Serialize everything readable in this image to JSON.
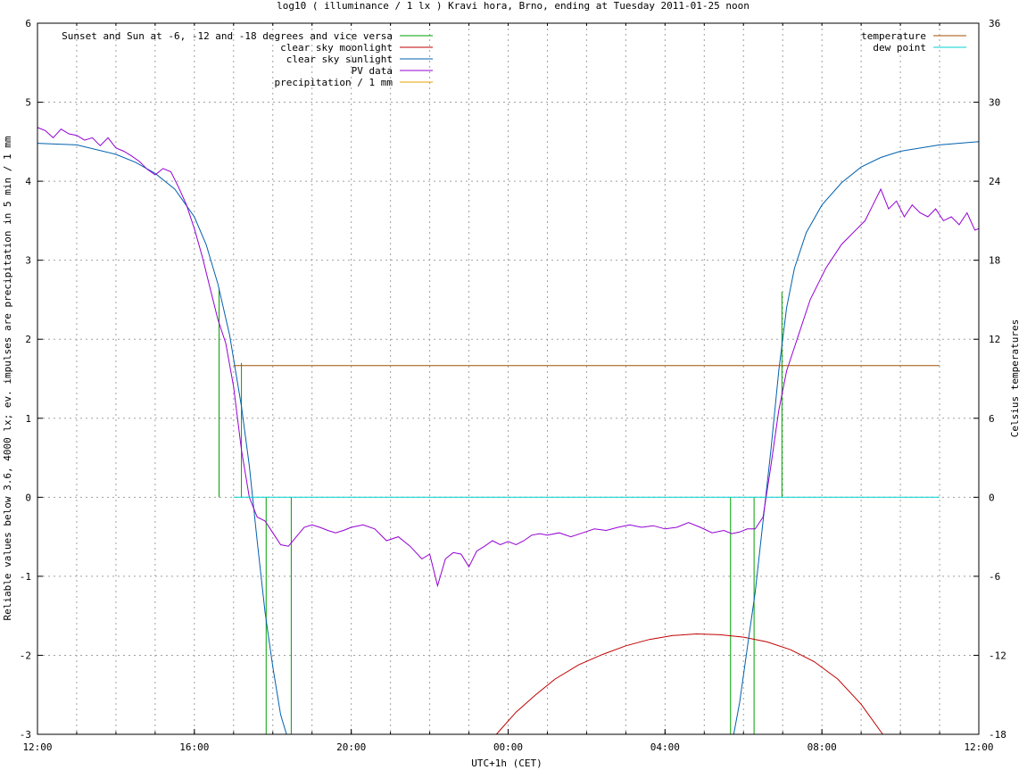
{
  "chart_data": {
    "type": "line",
    "title": "log10 ( illuminance / 1 lx ) Kravi hora, Brno, ending at Tuesday 2011-01-25 noon",
    "xlabel": "UTC+1h (CET)",
    "ylabel": "Reliable values below 3.6, 4000 lx; ev. impulses are precipitation in 5 min / 1 mm",
    "y2label": "Celsius temperatures",
    "xlim": [
      0,
      24
    ],
    "ylim": [
      -3,
      6
    ],
    "y2lim": [
      -18,
      36
    ],
    "x_tick_labels": [
      "12:00",
      "16:00",
      "20:00",
      "00:00",
      "04:00",
      "08:00",
      "12:00"
    ],
    "x_tick_values": [
      0,
      4,
      8,
      12,
      16,
      20,
      24
    ],
    "y_ticks": [
      -3,
      -2,
      -1,
      0,
      1,
      2,
      3,
      4,
      5,
      6
    ],
    "y2_ticks": [
      -18,
      -12,
      -6,
      0,
      6,
      12,
      18,
      24,
      30,
      36
    ],
    "grid": true,
    "legend_left_placement": "top-left",
    "legend_right_placement": "top-right",
    "series": [
      {
        "name": "Sunset and Sun at -6, -12 and -18 degrees and vice versa",
        "color": "#00a000",
        "style": "impulse",
        "x": [
          4.63,
          5.2,
          5.83,
          6.47,
          17.67,
          18.27,
          18.98
        ],
        "from": 0,
        "to": [
          2.65,
          1.7,
          -3,
          -3,
          -3,
          -3,
          2.6
        ]
      },
      {
        "name": "clear sky moonlight",
        "color": "#c00000",
        "x": [
          11.7,
          12.2,
          12.7,
          13.2,
          13.8,
          14.4,
          15.0,
          15.6,
          16.2,
          16.8,
          17.4,
          18.0,
          18.6,
          19.2,
          19.8,
          20.4,
          21.0,
          21.55
        ],
        "y": [
          -3.0,
          -2.72,
          -2.5,
          -2.3,
          -2.12,
          -1.99,
          -1.88,
          -1.8,
          -1.75,
          -1.73,
          -1.74,
          -1.77,
          -1.83,
          -1.93,
          -2.08,
          -2.3,
          -2.62,
          -3.0
        ]
      },
      {
        "name": "clear sky sunlight",
        "color": "#0060ad",
        "x": [
          0,
          1,
          2,
          2.5,
          3,
          3.5,
          4.0,
          4.3,
          4.6,
          4.9,
          5.2,
          5.4,
          5.6,
          5.8,
          6.0,
          6.2,
          6.35,
          17.75,
          17.9,
          18.1,
          18.3,
          18.5,
          18.7,
          18.9,
          19.1,
          19.3,
          19.6,
          20.0,
          20.5,
          21.0,
          21.5,
          22.0,
          23.0,
          24.0
        ],
        "y": [
          4.48,
          4.46,
          4.34,
          4.24,
          4.1,
          3.9,
          3.55,
          3.2,
          2.7,
          2.05,
          1.15,
          0.4,
          -0.55,
          -1.45,
          -2.15,
          -2.75,
          -3.0,
          -3.0,
          -2.6,
          -1.9,
          -1.2,
          -0.3,
          0.6,
          1.6,
          2.4,
          2.9,
          3.35,
          3.7,
          3.98,
          4.18,
          4.3,
          4.38,
          4.46,
          4.5
        ]
      },
      {
        "name": "PV data",
        "color": "#9400d3",
        "x": [
          0,
          0.2,
          0.4,
          0.6,
          0.8,
          1.0,
          1.2,
          1.4,
          1.6,
          1.8,
          2.0,
          2.2,
          2.4,
          2.6,
          2.8,
          3.0,
          3.2,
          3.4,
          3.6,
          3.8,
          4.0,
          4.2,
          4.4,
          4.6,
          4.8,
          5.0,
          5.2,
          5.4,
          5.6,
          5.8,
          6.0,
          6.2,
          6.4,
          6.6,
          6.8,
          7.0,
          7.2,
          7.4,
          7.6,
          7.8,
          8.0,
          8.3,
          8.6,
          8.9,
          9.2,
          9.5,
          9.8,
          10.0,
          10.2,
          10.4,
          10.6,
          10.8,
          11.0,
          11.2,
          11.4,
          11.6,
          11.8,
          12.0,
          12.2,
          12.4,
          12.6,
          12.8,
          13.0,
          13.3,
          13.6,
          13.9,
          14.2,
          14.5,
          14.8,
          15.1,
          15.4,
          15.7,
          16.0,
          16.3,
          16.6,
          16.9,
          17.2,
          17.5,
          17.7,
          17.9,
          18.1,
          18.3,
          18.5,
          18.7,
          18.9,
          19.1,
          19.3,
          19.5,
          19.7,
          19.9,
          20.1,
          20.3,
          20.5,
          20.7,
          20.9,
          21.1,
          21.3,
          21.5,
          21.7,
          21.9,
          22.1,
          22.3,
          22.5,
          22.7,
          22.9,
          23.1,
          23.3,
          23.5,
          23.7,
          23.9,
          24.0
        ],
        "y": [
          4.68,
          4.64,
          4.55,
          4.66,
          4.6,
          4.58,
          4.52,
          4.55,
          4.45,
          4.55,
          4.42,
          4.38,
          4.32,
          4.25,
          4.15,
          4.08,
          4.16,
          4.12,
          3.92,
          3.7,
          3.4,
          3.05,
          2.65,
          2.25,
          1.95,
          1.4,
          0.6,
          0.0,
          -0.25,
          -0.3,
          -0.45,
          -0.6,
          -0.62,
          -0.5,
          -0.38,
          -0.35,
          -0.38,
          -0.42,
          -0.45,
          -0.42,
          -0.38,
          -0.35,
          -0.4,
          -0.55,
          -0.5,
          -0.62,
          -0.78,
          -0.72,
          -1.12,
          -0.78,
          -0.7,
          -0.72,
          -0.88,
          -0.68,
          -0.62,
          -0.55,
          -0.6,
          -0.56,
          -0.6,
          -0.55,
          -0.48,
          -0.46,
          -0.48,
          -0.45,
          -0.5,
          -0.45,
          -0.4,
          -0.42,
          -0.38,
          -0.35,
          -0.38,
          -0.36,
          -0.4,
          -0.38,
          -0.32,
          -0.38,
          -0.45,
          -0.42,
          -0.46,
          -0.44,
          -0.4,
          -0.4,
          -0.25,
          0.4,
          1.1,
          1.6,
          1.9,
          2.2,
          2.5,
          2.7,
          2.9,
          3.05,
          3.2,
          3.3,
          3.4,
          3.5,
          3.7,
          3.9,
          3.65,
          3.75,
          3.55,
          3.7,
          3.6,
          3.55,
          3.65,
          3.5,
          3.55,
          3.45,
          3.6,
          3.38,
          3.4
        ]
      },
      {
        "name": "precipitation / 1 mm",
        "color": "#e6a000",
        "x": [],
        "y": []
      },
      {
        "name": "temperature",
        "axis": "y2",
        "color": "#a05000",
        "x": [
          5.0,
          23.0
        ],
        "y": [
          10.0,
          10.0
        ]
      },
      {
        "name": "dew point",
        "axis": "y2",
        "color": "#00d0d0",
        "x": [
          5.0,
          23.0
        ],
        "y": [
          0.0,
          0.0
        ]
      }
    ],
    "legend_left": [
      "Sunset and Sun at -6, -12 and -18 degrees and vice versa",
      "clear sky moonlight",
      "clear sky sunlight",
      "PV data",
      "precipitation / 1 mm"
    ],
    "legend_right": [
      "temperature",
      "dew point"
    ]
  }
}
